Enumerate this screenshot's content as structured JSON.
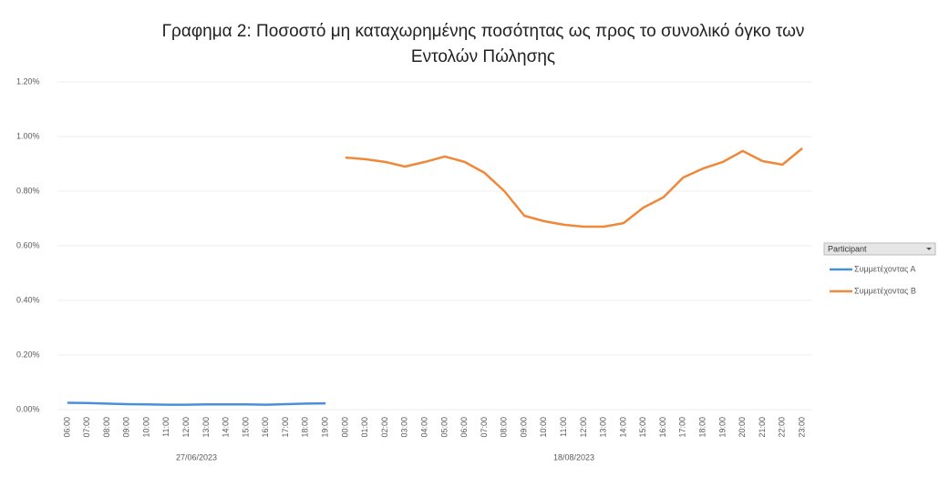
{
  "chart_data": {
    "type": "line",
    "title": [
      "Γραφημα 2: Ποσοστό μη καταχωρημένης ποσότητας ως προς το συνολικό όγκο των",
      "Εντολών Πώλησης"
    ],
    "category_groups": [
      {
        "label": "27/06/2023",
        "categories": [
          "06:00",
          "07:00",
          "08:00",
          "09:00",
          "10:00",
          "11:00",
          "12:00",
          "13:00",
          "14:00",
          "15:00",
          "16:00",
          "17:00",
          "18:00",
          "19:00"
        ]
      },
      {
        "label": "18/08/2023",
        "categories": [
          "00:00",
          "01:00",
          "02:00",
          "03:00",
          "04:00",
          "05:00",
          "06:00",
          "07:00",
          "08:00",
          "09:00",
          "10:00",
          "11:00",
          "12:00",
          "13:00",
          "14:00",
          "15:00",
          "16:00",
          "17:00",
          "18:00",
          "19:00",
          "20:00",
          "21:00",
          "22:00",
          "23:00"
        ]
      }
    ],
    "series": [
      {
        "name": "Συμμετέχοντας Α",
        "color": "#4a90d9",
        "values": [
          0.025,
          0.024,
          0.022,
          0.02,
          0.019,
          0.018,
          0.018,
          0.019,
          0.019,
          0.019,
          0.018,
          0.02,
          0.022,
          0.023,
          null,
          null,
          null,
          null,
          null,
          null,
          null,
          null,
          null,
          null,
          null,
          null,
          null,
          null,
          null,
          null,
          null,
          null,
          null,
          null,
          null,
          null,
          null,
          null
        ]
      },
      {
        "name": "Συμμετέχοντας Β",
        "color": "#f0883a",
        "values": [
          null,
          null,
          null,
          null,
          null,
          null,
          null,
          null,
          null,
          null,
          null,
          null,
          null,
          null,
          0.923,
          0.917,
          0.907,
          0.89,
          0.907,
          0.927,
          0.907,
          0.867,
          0.8,
          0.71,
          0.69,
          0.677,
          0.67,
          0.67,
          0.683,
          0.74,
          0.777,
          0.85,
          0.883,
          0.907,
          0.947,
          0.91,
          0.897,
          0.957
        ]
      }
    ],
    "ylim": [
      0,
      1.2
    ],
    "yticks": [
      {
        "value": 0,
        "label": "0.00%"
      },
      {
        "value": 0.2,
        "label": "0.20%"
      },
      {
        "value": 0.4,
        "label": "0.40%"
      },
      {
        "value": 0.6,
        "label": "0.60%"
      },
      {
        "value": 0.8,
        "label": "0.80%"
      },
      {
        "value": 1.0,
        "label": "1.00%"
      },
      {
        "value": 1.2,
        "label": "1.20%"
      }
    ],
    "grid": true,
    "legend_title": "Participant",
    "legend": "right"
  }
}
